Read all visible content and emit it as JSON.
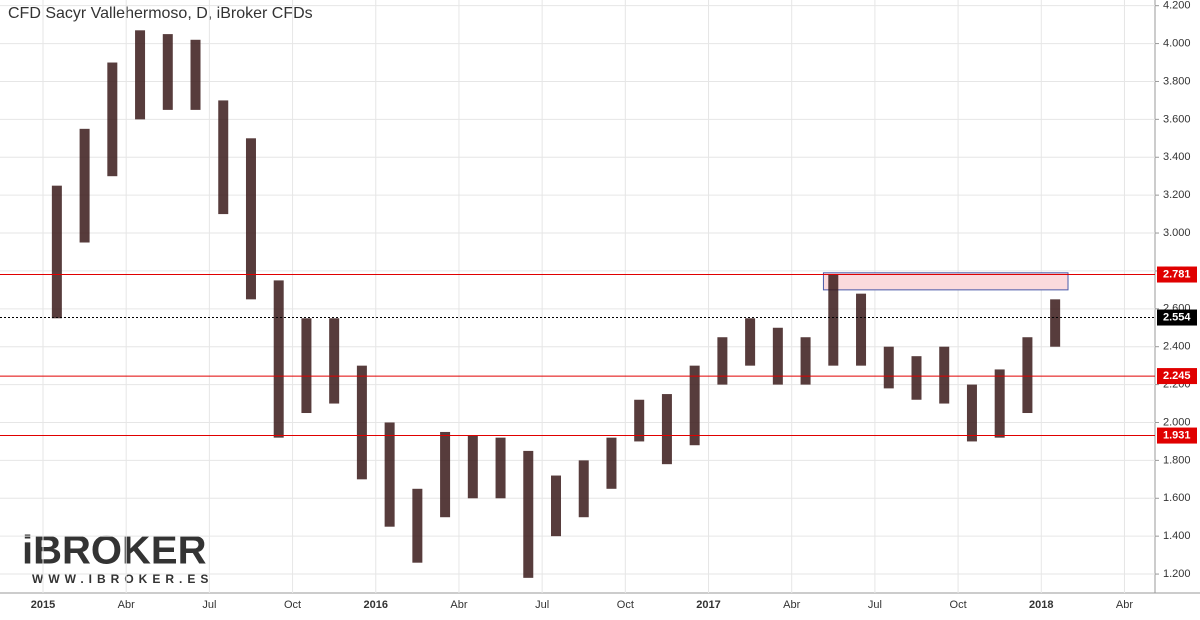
{
  "chart_data": {
    "type": "range",
    "title": "CFD Sacyr Vallehermoso, D, iBroker CFDs",
    "categories": [
      "2015",
      null,
      null,
      "Abr",
      null,
      null,
      "Jul",
      null,
      null,
      "Oct",
      null,
      null,
      "2016",
      null,
      null,
      "Abr",
      null,
      null,
      "Jul",
      null,
      null,
      "Oct",
      null,
      null,
      "2017",
      null,
      null,
      "Abr",
      null,
      null,
      "Jul",
      null,
      null,
      "Oct",
      null,
      null,
      "2018",
      null,
      null,
      "Abr",
      null
    ],
    "high": [
      3.25,
      3.55,
      3.9,
      4.07,
      4.05,
      4.02,
      3.7,
      3.5,
      2.75,
      2.55,
      2.55,
      2.3,
      2.0,
      1.65,
      1.95,
      1.93,
      1.92,
      1.85,
      1.72,
      1.8,
      1.92,
      2.12,
      2.15,
      2.3,
      2.45,
      2.55,
      2.5,
      2.45,
      2.78,
      2.68,
      2.4,
      2.35,
      2.4,
      2.2,
      2.28,
      2.45,
      2.65,
      null,
      null,
      null,
      null
    ],
    "low": [
      2.55,
      2.95,
      3.3,
      3.6,
      3.65,
      3.65,
      3.1,
      2.65,
      1.92,
      2.05,
      2.1,
      1.7,
      1.45,
      1.26,
      1.5,
      1.6,
      1.6,
      1.18,
      1.4,
      1.5,
      1.65,
      1.9,
      1.78,
      1.88,
      2.2,
      2.3,
      2.2,
      2.2,
      2.3,
      2.3,
      2.18,
      2.12,
      2.1,
      1.9,
      1.92,
      2.05,
      2.4,
      null,
      null,
      null,
      null
    ],
    "color": "#3a1a1a",
    "ylim": [
      1.1,
      4.23
    ],
    "yticks": [
      {
        "value": 1.2,
        "label": "1.200"
      },
      {
        "value": 1.4,
        "label": "1.400"
      },
      {
        "value": 1.6,
        "label": "1.600"
      },
      {
        "value": 1.8,
        "label": "1.800"
      },
      {
        "value": 2.0,
        "label": "2.000"
      },
      {
        "value": 2.2,
        "label": "2.200"
      },
      {
        "value": 2.4,
        "label": "2.400"
      },
      {
        "value": 2.6,
        "label": "2.600"
      },
      {
        "value": 2.8,
        "label": "2.800"
      },
      {
        "value": 3.0,
        "label": "3.000"
      },
      {
        "value": 3.2,
        "label": "3.200"
      },
      {
        "value": 3.4,
        "label": "3.400"
      },
      {
        "value": 3.6,
        "label": "3.600"
      },
      {
        "value": 3.8,
        "label": "3.800"
      },
      {
        "value": 4.0,
        "label": "4.000"
      },
      {
        "value": 4.2,
        "label": "4.200"
      }
    ],
    "grid": true,
    "levels": [
      {
        "value": 2.781,
        "color": "#e00000",
        "style": "solid"
      },
      {
        "value": 2.554,
        "color": "#000000",
        "style": "dotted"
      },
      {
        "value": 2.245,
        "color": "#e00000",
        "style": "solid"
      },
      {
        "value": 1.931,
        "color": "#e00000",
        "style": "solid"
      }
    ],
    "zone": [
      2.7,
      2.79
    ]
  },
  "logo": {
    "name": "iBROKER",
    "url": "WWW.IBROKER.ES"
  }
}
